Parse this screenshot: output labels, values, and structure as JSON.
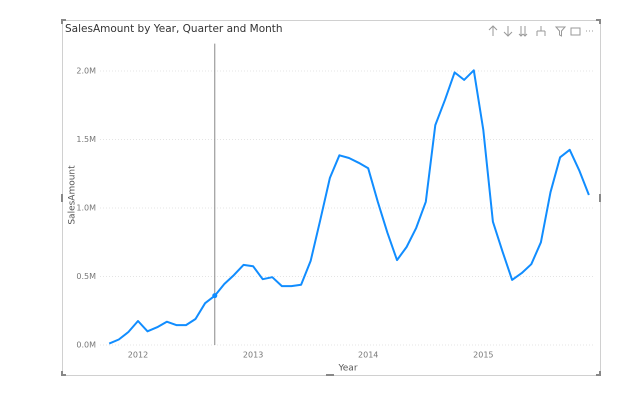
{
  "chart_data": {
    "type": "line",
    "title": "SalesAmount by Year, Quarter and Month",
    "xlabel": "Year",
    "ylabel": "SalesAmount",
    "x": [
      2011.75,
      2011.833,
      2011.917,
      2012,
      2012.083,
      2012.167,
      2012.25,
      2012.333,
      2012.417,
      2012.5,
      2012.583,
      2012.667,
      2012.75,
      2012.833,
      2012.917,
      2013,
      2013.083,
      2013.167,
      2013.25,
      2013.333,
      2013.417,
      2013.5,
      2013.583,
      2013.667,
      2013.75,
      2013.833,
      2013.917,
      2014,
      2014.083,
      2014.167,
      2014.25,
      2014.333,
      2014.417,
      2014.5,
      2014.583,
      2014.667,
      2014.75,
      2014.833,
      2014.917,
      2015,
      2015.083,
      2015.167,
      2015.25,
      2015.333,
      2015.417,
      2015.5,
      2015.583,
      2015.667,
      2015.75,
      2015.833,
      2015.917
    ],
    "values": [
      10000,
      40000,
      95000,
      175000,
      100000,
      130000,
      170000,
      145000,
      145000,
      190000,
      305000,
      360000,
      445000,
      510000,
      585000,
      575000,
      480000,
      495000,
      430000,
      430000,
      440000,
      615000,
      910000,
      1220000,
      1385000,
      1365000,
      1330000,
      1290000,
      1045000,
      820000,
      620000,
      715000,
      855000,
      1045000,
      1605000,
      1790000,
      1990000,
      1935000,
      2005000,
      1570000,
      900000,
      680000,
      475000,
      525000,
      590000,
      750000,
      1115000,
      1370000,
      1425000,
      1275000,
      1095000
    ],
    "color": "#118dff",
    "xlim": [
      2011.67,
      2015.97
    ],
    "xticks": [
      2012,
      2013,
      2014,
      2015
    ],
    "ylim": [
      0,
      2200000
    ],
    "yticks": [
      {
        "value": 0,
        "label": "0.0M"
      },
      {
        "value": 500000,
        "label": "0.5M"
      },
      {
        "value": 1000000,
        "label": "1.0M"
      },
      {
        "value": 1500000,
        "label": "1.5M"
      },
      {
        "value": 2000000,
        "label": "2.0M"
      }
    ],
    "grid": true
  }
}
